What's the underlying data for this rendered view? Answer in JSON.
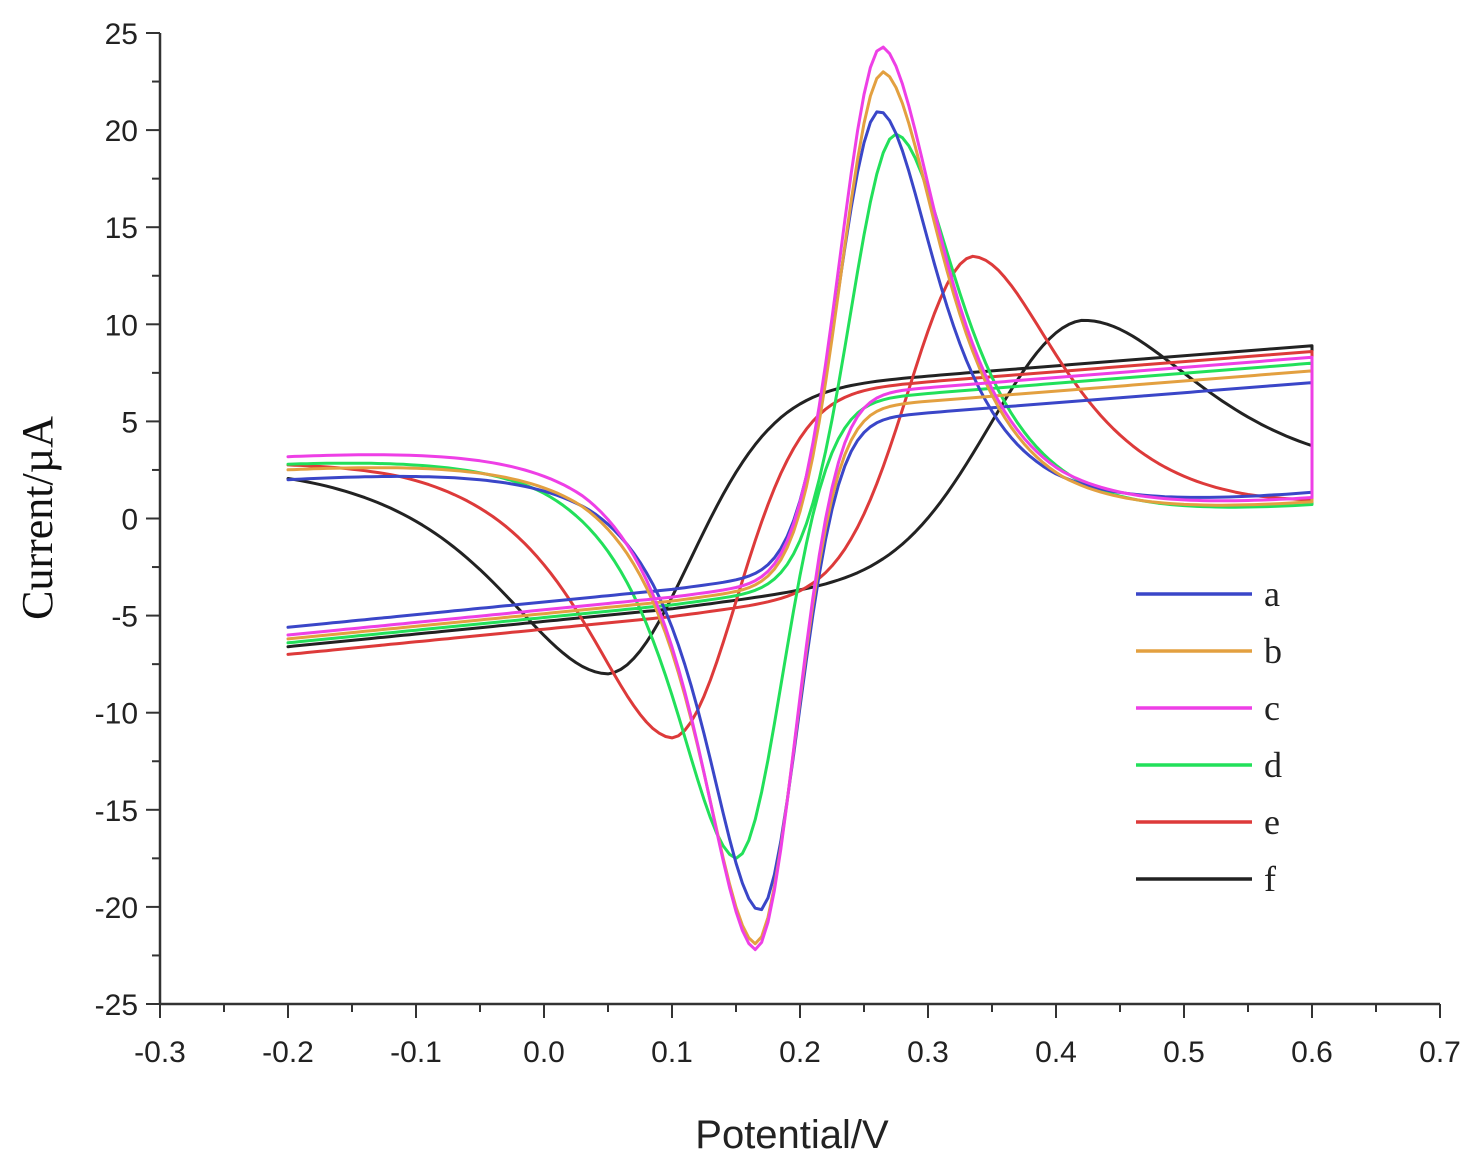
{
  "chart_data": {
    "type": "line",
    "title": "",
    "xlabel": "Potential/V",
    "ylabel": "Current/µA",
    "xlim": [
      -0.3,
      0.7
    ],
    "ylim": [
      -25,
      25
    ],
    "x_ticks": [
      "-0.3",
      "-0.2",
      "-0.1",
      "0.0",
      "0.1",
      "0.2",
      "0.3",
      "0.4",
      "0.5",
      "0.6",
      "0.7"
    ],
    "y_ticks": [
      "25",
      "20",
      "15",
      "10",
      "5",
      "0",
      "-5",
      "-10",
      "-15",
      "-20",
      "-25"
    ],
    "grid": false,
    "legend_position": "lower-right",
    "series": [
      {
        "name": "a",
        "color": "#3a46c8",
        "ipa": 21.0,
        "epa": 0.262,
        "ipc": -20.2,
        "epc": 0.168,
        "i_start": -5.6,
        "i_end": 7.0
      },
      {
        "name": "b",
        "color": "#e3a040",
        "ipa": 23.0,
        "epa": 0.265,
        "ipc": -21.9,
        "epc": 0.165,
        "i_start": -6.2,
        "i_end": 7.6
      },
      {
        "name": "c",
        "color": "#ee3fe6",
        "ipa": 24.3,
        "epa": 0.264,
        "ipc": -22.2,
        "epc": 0.165,
        "i_start": -6.0,
        "i_end": 8.3
      },
      {
        "name": "d",
        "color": "#22e05a",
        "ipa": 19.8,
        "epa": 0.275,
        "ipc": -17.5,
        "epc": 0.15,
        "i_start": -6.4,
        "i_end": 8.0
      },
      {
        "name": "e",
        "color": "#dd3a3a",
        "ipa": 13.5,
        "epa": 0.335,
        "ipc": -11.3,
        "epc": 0.1,
        "i_start": -7.0,
        "i_end": 8.6
      },
      {
        "name": "f",
        "color": "#222222",
        "ipa": 10.2,
        "epa": 0.42,
        "ipc": -8.0,
        "epc": 0.05,
        "i_start": -6.6,
        "i_end": 8.9
      }
    ]
  }
}
